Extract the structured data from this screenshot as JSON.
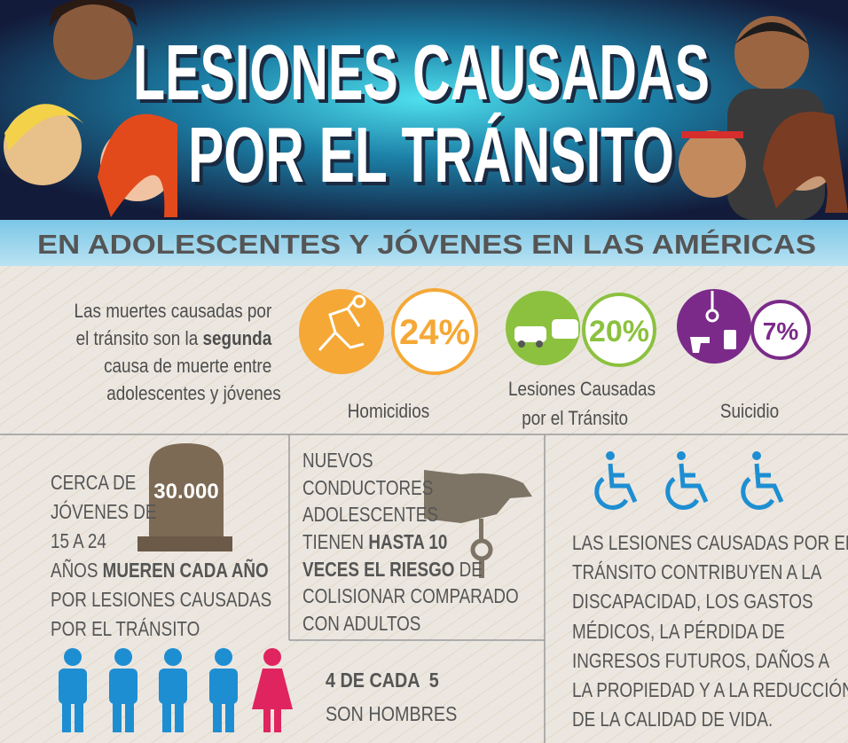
{
  "header": {
    "title": [
      "LESIONES CAUSADAS",
      "POR EL TRÁNSITO"
    ],
    "subtitle": "EN ADOLESCENTES Y JÓVENES EN LAS AMÉRICAS"
  },
  "intro": {
    "lines": [
      [
        "Las muertes causadas por"
      ],
      [
        "el tránsito son la ",
        "segunda"
      ],
      [
        "causa de muerte entre"
      ],
      [
        "adolescentes y jóvenes"
      ]
    ]
  },
  "stats": [
    {
      "value": "24%",
      "label": [
        "Homicidios"
      ]
    },
    {
      "value": "20%",
      "label": [
        "Lesiones Causadas",
        "por el Tránsito"
      ]
    },
    {
      "value": "7%",
      "label": [
        "Suicidio"
      ]
    }
  ],
  "deaths": {
    "count": "30.000",
    "lines": [
      [
        "CERCA DE"
      ],
      [
        "JÓVENES DE"
      ],
      [
        "15 A 24"
      ],
      [
        "AÑOS ",
        "MUEREN CADA AÑO"
      ],
      [
        "POR LESIONES CAUSADAS"
      ],
      [
        "POR EL TRÁNSITO"
      ]
    ]
  },
  "drivers": {
    "lines": [
      [
        "NUEVOS"
      ],
      [
        "CONDUCTORES"
      ],
      [
        "ADOLESCENTES"
      ],
      [
        "TIENEN ",
        "HASTA 10"
      ],
      [
        "VECES EL RIESGO",
        " DE"
      ],
      [
        "COLISIONAR COMPARADO"
      ],
      [
        "CON ADULTOS"
      ]
    ]
  },
  "gender": {
    "lines": [
      "4 DE CADA  5",
      "SON HOMBRES"
    ]
  },
  "disability": {
    "lines": [
      "LAS LESIONES CAUSADAS POR EL",
      "TRÁNSITO CONTRIBUYEN A LA",
      "DISCAPACIDAD, LOS GASTOS",
      "MÉDICOS, LA PÉRDIDA DE",
      "INGRESOS FUTUROS, DAÑOS A",
      "LA PROPIEDAD Y A LA REDUCCIÓN",
      "DE LA CALIDAD DE VIDA."
    ]
  }
}
